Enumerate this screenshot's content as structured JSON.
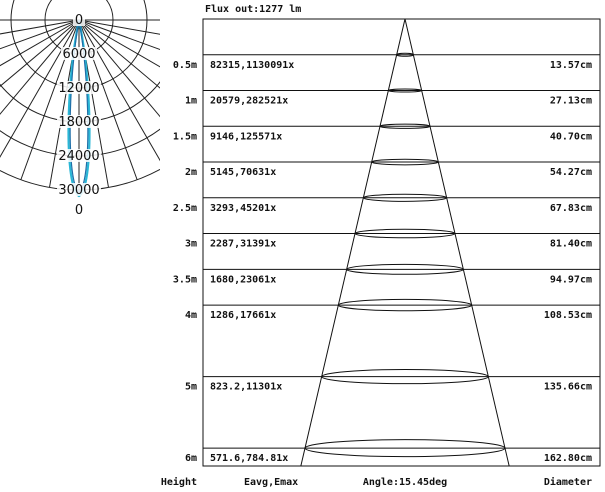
{
  "flux_label": "Flux out:1277 lm",
  "polar": {
    "rings": [
      "0",
      "6000",
      "12000",
      "18000",
      "24000",
      "30000"
    ],
    "bottom_label": "0",
    "curve_colors": [
      "#2ab7d6",
      "#1f6fa8"
    ]
  },
  "rows": [
    {
      "height": "0.5m",
      "values": "82315,1130091x",
      "diameter": "13.57cm"
    },
    {
      "height": "1m",
      "values": "20579,282521x",
      "diameter": "27.13cm"
    },
    {
      "height": "1.5m",
      "values": "9146,125571x",
      "diameter": "40.70cm"
    },
    {
      "height": "2m",
      "values": "5145,70631x",
      "diameter": "54.27cm"
    },
    {
      "height": "2.5m",
      "values": "3293,45201x",
      "diameter": "67.83cm"
    },
    {
      "height": "3m",
      "values": "2287,31391x",
      "diameter": "81.40cm"
    },
    {
      "height": "3.5m",
      "values": "1680,23061x",
      "diameter": "94.97cm"
    },
    {
      "height": "4m",
      "values": "1286,17661x",
      "diameter": "108.53cm"
    },
    {
      "height": "5m",
      "values": "823.2,11301x",
      "diameter": "135.66cm"
    },
    {
      "height": "6m",
      "values": "571.6,784.81x",
      "diameter": "162.80cm"
    }
  ],
  "footer": {
    "height": "Height",
    "eavg": "Eavg,Emax",
    "angle": "Angle:15.45deg",
    "diameter": "Diameter"
  }
}
